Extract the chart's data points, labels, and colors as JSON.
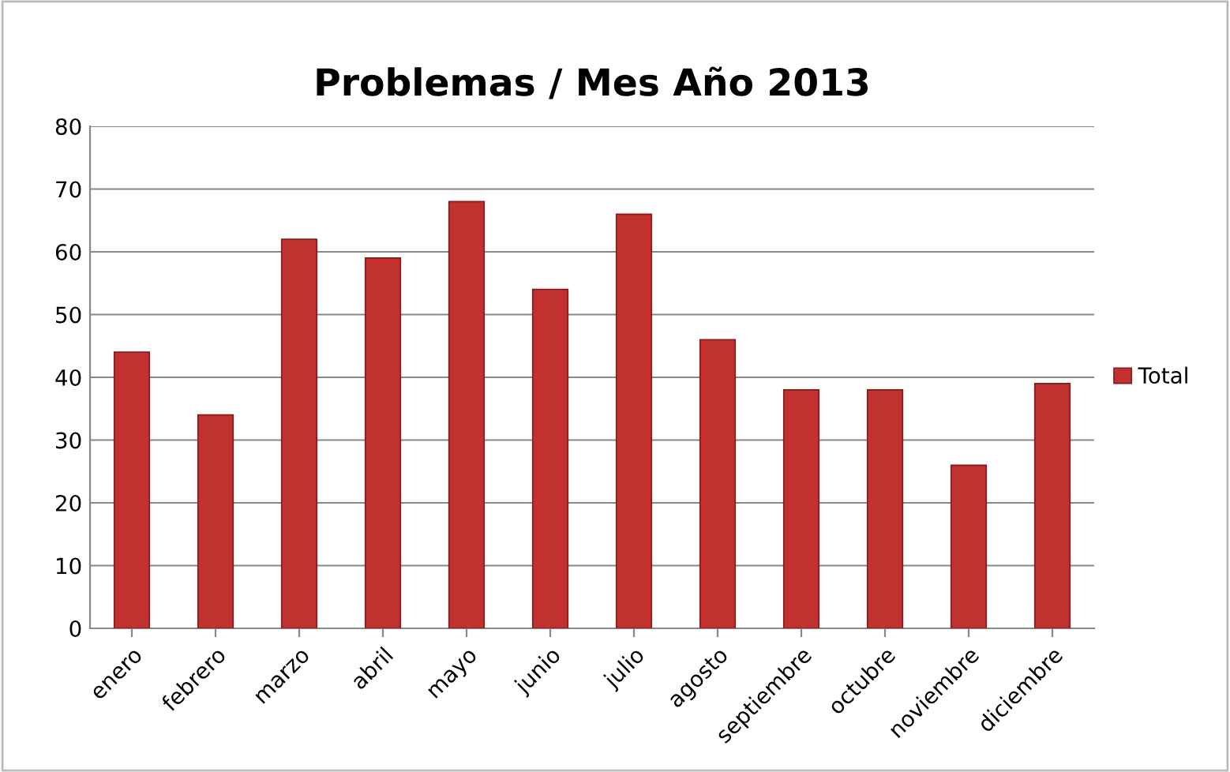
{
  "chart_data": {
    "type": "bar",
    "title": "Problemas / Mes Año 2013",
    "categories": [
      "enero",
      "febrero",
      "marzo",
      "abril",
      "mayo",
      "junio",
      "julio",
      "agosto",
      "septiembre",
      "octubre",
      "noviembre",
      "diciembre"
    ],
    "series": [
      {
        "name": "Total",
        "color": "#c0312f",
        "values": [
          44,
          34,
          62,
          59,
          68,
          54,
          66,
          46,
          38,
          38,
          26,
          39
        ]
      }
    ],
    "ylim": [
      0,
      80
    ],
    "yticks": [
      0,
      10,
      20,
      30,
      40,
      50,
      60,
      70,
      80
    ],
    "grid": "y",
    "legend": "right"
  }
}
